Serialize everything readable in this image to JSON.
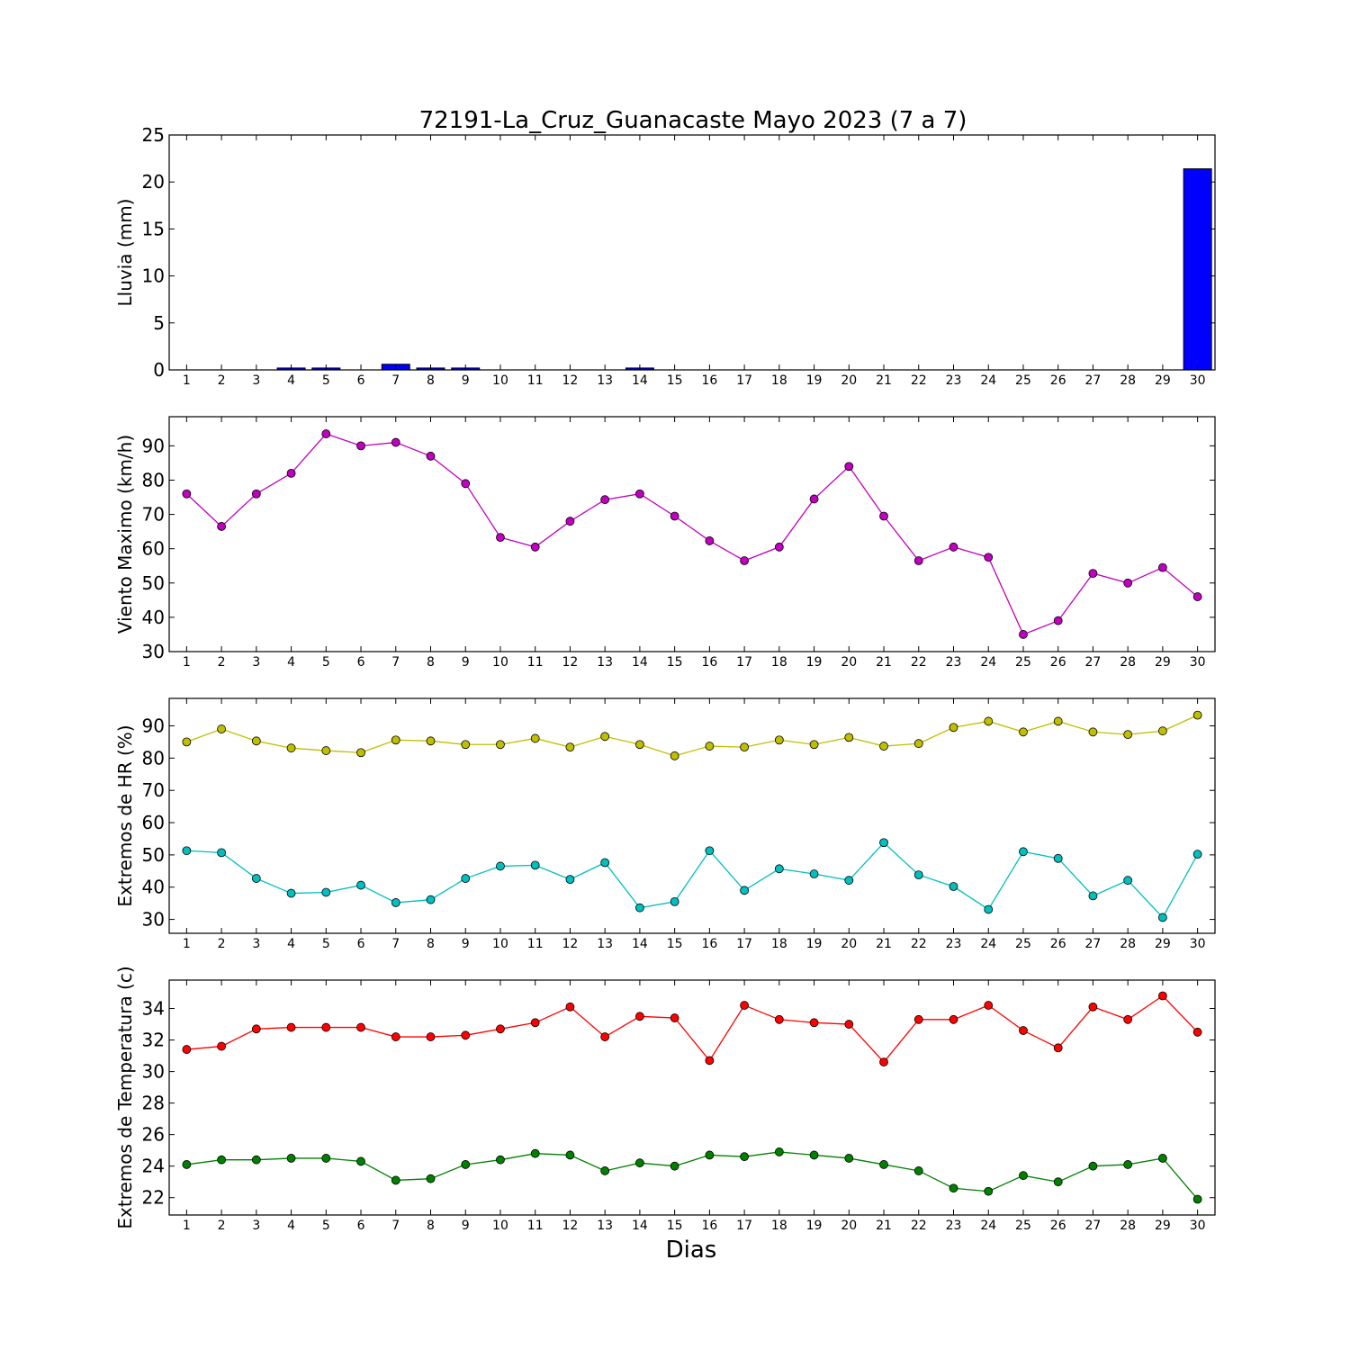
{
  "figure": {
    "title": "72191-La_Cruz_Guanacaste Mayo 2023  (7 a 7)",
    "xlabel": "Dias"
  },
  "chart_data": [
    {
      "type": "bar",
      "ylabel": "Lluvia (mm)",
      "x": [
        1,
        2,
        3,
        4,
        5,
        6,
        7,
        8,
        9,
        10,
        11,
        12,
        13,
        14,
        15,
        16,
        17,
        18,
        19,
        20,
        21,
        22,
        23,
        24,
        25,
        26,
        27,
        28,
        29,
        30
      ],
      "values": [
        0,
        0,
        0,
        0.2,
        0.2,
        0,
        0.6,
        0.2,
        0.2,
        0,
        0,
        0,
        0,
        0.2,
        0,
        0,
        0,
        0,
        0,
        0,
        0,
        0,
        0,
        0,
        0,
        0,
        0,
        0,
        0,
        21.4
      ],
      "ylim": [
        0,
        25
      ],
      "yticks": [
        0,
        5,
        10,
        15,
        20,
        25
      ],
      "color": "#0000ff"
    },
    {
      "type": "line",
      "ylabel": "Viento Maximo (km/h)",
      "x": [
        1,
        2,
        3,
        4,
        5,
        6,
        7,
        8,
        9,
        10,
        11,
        12,
        13,
        14,
        15,
        16,
        17,
        18,
        19,
        20,
        21,
        22,
        23,
        24,
        25,
        26,
        27,
        28,
        29,
        30
      ],
      "series": [
        {
          "values": [
            76,
            66.5,
            76,
            82,
            93.5,
            90,
            91,
            87,
            79,
            63.3,
            60.5,
            68,
            74.3,
            76,
            69.5,
            62.3,
            56.5,
            60.5,
            74.5,
            84,
            69.5,
            56.5,
            60.5,
            57.5,
            35,
            39,
            52.8,
            50,
            54.5,
            46
          ],
          "color": "#bf00bf"
        }
      ],
      "ylim": [
        30,
        98.5
      ],
      "yticks": [
        30,
        40,
        50,
        60,
        70,
        80,
        90
      ]
    },
    {
      "type": "line",
      "ylabel": "Extremos de HR (%)",
      "x": [
        1,
        2,
        3,
        4,
        5,
        6,
        7,
        8,
        9,
        10,
        11,
        12,
        13,
        14,
        15,
        16,
        17,
        18,
        19,
        20,
        21,
        22,
        23,
        24,
        25,
        26,
        27,
        28,
        29,
        30
      ],
      "series": [
        {
          "values": [
            85,
            89,
            85.3,
            83.1,
            82.3,
            81.7,
            85.6,
            85.3,
            84.2,
            84.2,
            86.1,
            83.4,
            86.7,
            84.2,
            80.7,
            83.7,
            83.4,
            85.6,
            84.2,
            86.4,
            83.7,
            84.5,
            89.5,
            91.4,
            88.1,
            91.4,
            88.1,
            87.3,
            88.4,
            93.3
          ],
          "color": "#bfbf00"
        },
        {
          "values": [
            51.3,
            50.7,
            42.7,
            38.1,
            38.4,
            40.6,
            35.2,
            36.1,
            42.7,
            46.5,
            46.8,
            42.4,
            47.6,
            33.6,
            35.5,
            51.3,
            39,
            45.7,
            44.1,
            42.1,
            53.8,
            43.8,
            40.2,
            33.1,
            51,
            48.9,
            37.3,
            42.1,
            30.6,
            50.2
          ],
          "color": "#00bfbf"
        }
      ],
      "ylim": [
        25.7,
        98.5
      ],
      "yticks": [
        30,
        40,
        50,
        60,
        70,
        80,
        90
      ]
    },
    {
      "type": "line",
      "ylabel": "Extremos de Temperatura (c)",
      "x": [
        1,
        2,
        3,
        4,
        5,
        6,
        7,
        8,
        9,
        10,
        11,
        12,
        13,
        14,
        15,
        16,
        17,
        18,
        19,
        20,
        21,
        22,
        23,
        24,
        25,
        26,
        27,
        28,
        29,
        30
      ],
      "series": [
        {
          "values": [
            31.4,
            31.6,
            32.7,
            32.8,
            32.8,
            32.8,
            32.2,
            32.2,
            32.3,
            32.7,
            33.1,
            34.1,
            32.2,
            33.5,
            33.4,
            30.7,
            34.2,
            33.3,
            33.1,
            33,
            30.6,
            33.3,
            33.3,
            34.2,
            32.6,
            31.5,
            34.1,
            33.3,
            34.8,
            32.5
          ],
          "color": "#ff0000"
        },
        {
          "values": [
            24.1,
            24.4,
            24.4,
            24.5,
            24.5,
            24.3,
            23.1,
            23.2,
            24.1,
            24.4,
            24.8,
            24.7,
            23.7,
            24.2,
            24,
            24.7,
            24.6,
            24.9,
            24.7,
            24.5,
            24.1,
            23.7,
            22.6,
            22.4,
            23.4,
            23,
            24,
            24.1,
            24.5,
            21.9
          ],
          "color": "#008000"
        }
      ],
      "ylim": [
        20.9,
        35.8
      ],
      "yticks": [
        22,
        24,
        26,
        28,
        30,
        32,
        34
      ]
    }
  ]
}
